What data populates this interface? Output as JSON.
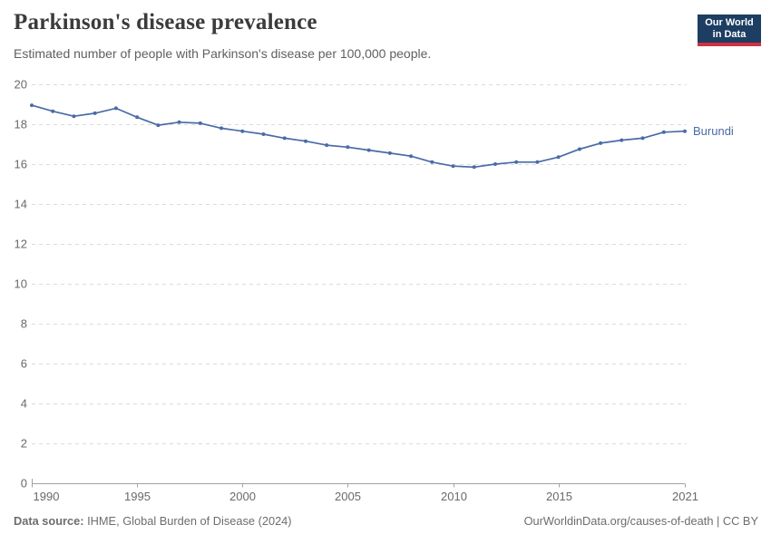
{
  "header": {
    "title": "Parkinson's disease prevalence",
    "subtitle": "Estimated number of people with Parkinson's disease per 100,000 people.",
    "logo_line1": "Our World",
    "logo_line2": "in Data"
  },
  "footer": {
    "source_label": "Data source:",
    "source_text": " IHME, Global Burden of Disease (2024)",
    "right_text": "OurWorldinData.org/causes-of-death | CC BY"
  },
  "colors": {
    "line": "#4a6ba6",
    "logo_bg": "#1d3d63",
    "logo_stripe": "#cd3241",
    "grid": "#dbdbdb",
    "axis": "#a3a3a3",
    "tick_text": "#696969"
  },
  "chart_data": {
    "type": "line",
    "title": "Parkinson's disease prevalence",
    "subtitle": "Estimated number of people with Parkinson's disease per 100,000 people.",
    "xlabel": "",
    "ylabel": "",
    "xlim": [
      1990,
      2021
    ],
    "ylim": [
      0,
      20
    ],
    "x_ticks": [
      1990,
      1995,
      2000,
      2005,
      2010,
      2015,
      2021
    ],
    "y_ticks": [
      0,
      2,
      4,
      6,
      8,
      10,
      12,
      14,
      16,
      18,
      20
    ],
    "grid": "horizontal-dashed",
    "legend": "end-of-line-label",
    "series": [
      {
        "name": "Burundi",
        "color": "#4a6ba6",
        "x": [
          1990,
          1991,
          1992,
          1993,
          1994,
          1995,
          1996,
          1997,
          1998,
          1999,
          2000,
          2001,
          2002,
          2003,
          2004,
          2005,
          2006,
          2007,
          2008,
          2009,
          2010,
          2011,
          2012,
          2013,
          2014,
          2015,
          2016,
          2017,
          2018,
          2019,
          2020,
          2021
        ],
        "values": [
          18.95,
          18.65,
          18.4,
          18.55,
          18.8,
          18.35,
          17.95,
          18.1,
          18.05,
          17.8,
          17.65,
          17.5,
          17.3,
          17.15,
          16.95,
          16.85,
          16.7,
          16.55,
          16.4,
          16.1,
          15.9,
          15.85,
          16.0,
          16.1,
          16.1,
          16.35,
          16.75,
          17.05,
          17.2,
          17.3,
          17.6,
          17.65
        ]
      }
    ]
  }
}
